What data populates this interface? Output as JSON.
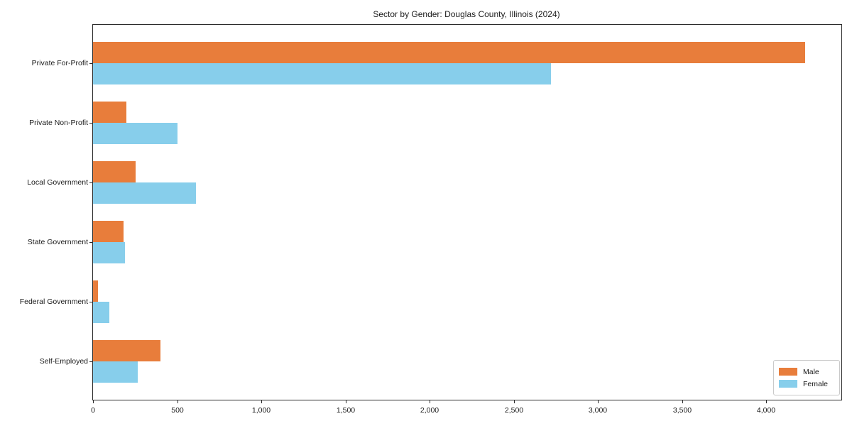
{
  "chart_data": {
    "type": "bar",
    "orientation": "horizontal",
    "title": "Sector by Gender: Douglas County, Illinois (2024)",
    "categories": [
      "Private For-Profit",
      "Private Non-Profit",
      "Local Government",
      "State Government",
      "Federal Government",
      "Self-Employed"
    ],
    "series": [
      {
        "name": "Male",
        "color": "#E87D3B",
        "values": [
          4230,
          200,
          255,
          180,
          30,
          400
        ]
      },
      {
        "name": "Female",
        "color": "#87CEEB",
        "values": [
          2720,
          500,
          610,
          190,
          95,
          265
        ]
      }
    ],
    "xlim": [
      0,
      4445
    ],
    "xticks": [
      0,
      500,
      1000,
      1500,
      2000,
      2500,
      3000,
      3500,
      4000
    ],
    "xtick_labels": [
      "0",
      "500",
      "1,000",
      "1,500",
      "2,000",
      "2,500",
      "3,000",
      "3,500",
      "4,000"
    ],
    "xlabel": "",
    "ylabel": "",
    "grid": false,
    "legend_position": "lower right"
  }
}
